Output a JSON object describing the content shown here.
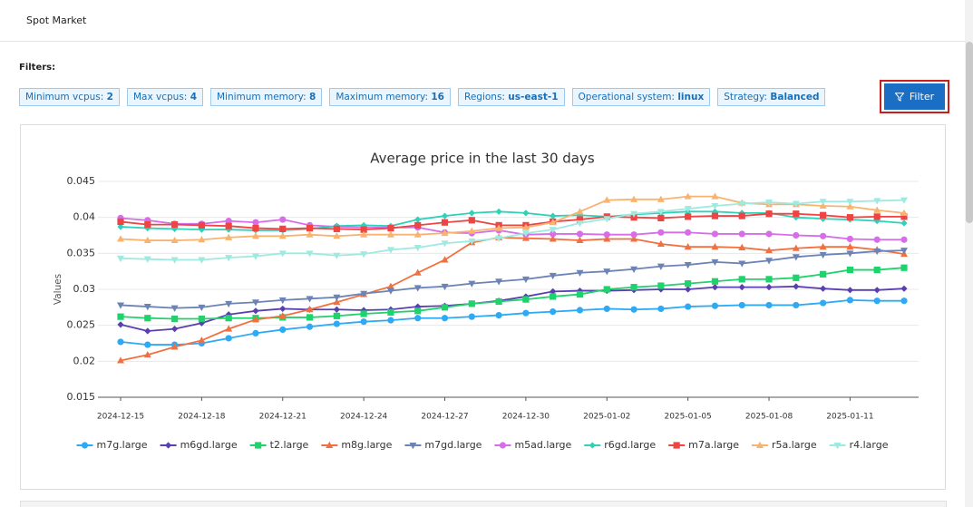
{
  "header": {
    "title": "Spot Market"
  },
  "filters": {
    "label": "Filters:",
    "button": "Filter",
    "chips": [
      {
        "label": "Minimum vcpus:",
        "value": "2"
      },
      {
        "label": "Max vcpus:",
        "value": "4"
      },
      {
        "label": "Minimum memory:",
        "value": "8"
      },
      {
        "label": "Maximum memory:",
        "value": "16"
      },
      {
        "label": "Regions:",
        "value": "us-east-1"
      },
      {
        "label": "Operational system:",
        "value": "linux"
      },
      {
        "label": "Strategy:",
        "value": "Balanced"
      }
    ]
  },
  "chart_data": {
    "type": "line",
    "title": "Average price in the last 30 days",
    "y_label": "Values",
    "x": [
      "2024-12-15",
      "2024-12-16",
      "2024-12-17",
      "2024-12-18",
      "2024-12-19",
      "2024-12-20",
      "2024-12-21",
      "2024-12-22",
      "2024-12-23",
      "2024-12-24",
      "2024-12-25",
      "2024-12-26",
      "2024-12-27",
      "2024-12-28",
      "2024-12-29",
      "2024-12-30",
      "2024-12-31",
      "2025-01-01",
      "2025-01-02",
      "2025-01-03",
      "2025-01-04",
      "2025-01-05",
      "2025-01-06",
      "2025-01-07",
      "2025-01-08",
      "2025-01-09",
      "2025-01-10",
      "2025-01-11",
      "2025-01-12",
      "2025-01-13"
    ],
    "xticks": [
      "2024-12-15",
      "2024-12-18",
      "2024-12-21",
      "2024-12-24",
      "2024-12-27",
      "2024-12-30",
      "2025-01-02",
      "2025-01-05",
      "2025-01-08",
      "2025-01-11"
    ],
    "ylim": [
      0.015,
      0.045
    ],
    "yticks": [
      0.015,
      0.02,
      0.025,
      0.03,
      0.035,
      0.04,
      0.045
    ],
    "grid": true,
    "legend": "bottom",
    "series": [
      {
        "name": "m7g.large",
        "color": "#2eaaf5",
        "marker": "circle",
        "values": [
          0.0227,
          0.0223,
          0.0223,
          0.0225,
          0.0232,
          0.0239,
          0.0244,
          0.0248,
          0.0252,
          0.0255,
          0.0257,
          0.026,
          0.026,
          0.0262,
          0.0264,
          0.0267,
          0.0269,
          0.0271,
          0.0273,
          0.0272,
          0.0273,
          0.0276,
          0.0277,
          0.0278,
          0.0278,
          0.0278,
          0.0281,
          0.0285,
          0.0284,
          0.0284
        ]
      },
      {
        "name": "m6gd.large",
        "color": "#5a3fb3",
        "marker": "diamond",
        "values": [
          0.0251,
          0.0242,
          0.0245,
          0.0253,
          0.0265,
          0.027,
          0.0273,
          0.0272,
          0.0272,
          0.0271,
          0.0272,
          0.0276,
          0.0277,
          0.028,
          0.0284,
          0.029,
          0.0297,
          0.0298,
          0.0298,
          0.0299,
          0.03,
          0.03,
          0.0303,
          0.0303,
          0.0303,
          0.0304,
          0.0301,
          0.0299,
          0.0299,
          0.0301
        ]
      },
      {
        "name": "t2.large",
        "color": "#1ed36b",
        "marker": "square",
        "values": [
          0.0262,
          0.026,
          0.0259,
          0.0259,
          0.026,
          0.026,
          0.0261,
          0.0261,
          0.0263,
          0.0266,
          0.0268,
          0.027,
          0.0275,
          0.028,
          0.0283,
          0.0286,
          0.029,
          0.0293,
          0.03,
          0.0303,
          0.0305,
          0.0308,
          0.0311,
          0.0314,
          0.0314,
          0.0316,
          0.0321,
          0.0327,
          0.0327,
          0.033
        ]
      },
      {
        "name": "m8g.large",
        "color": "#f07040",
        "marker": "triangle",
        "values": [
          0.0201,
          0.0209,
          0.022,
          0.0229,
          0.0245,
          0.0258,
          0.0263,
          0.0272,
          0.0282,
          0.0293,
          0.0304,
          0.0323,
          0.0341,
          0.0365,
          0.0372,
          0.0371,
          0.037,
          0.0368,
          0.037,
          0.037,
          0.0363,
          0.0359,
          0.0359,
          0.0358,
          0.0354,
          0.0357,
          0.0359,
          0.0359,
          0.0355,
          0.0349
        ]
      },
      {
        "name": "m7gd.large",
        "color": "#6b83b5",
        "marker": "triangle-down",
        "values": [
          0.0278,
          0.0276,
          0.0274,
          0.0275,
          0.028,
          0.0282,
          0.0285,
          0.0287,
          0.0289,
          0.0294,
          0.0298,
          0.0302,
          0.0304,
          0.0308,
          0.0311,
          0.0314,
          0.0319,
          0.0323,
          0.0325,
          0.0328,
          0.0332,
          0.0334,
          0.0338,
          0.0336,
          0.034,
          0.0345,
          0.0348,
          0.035,
          0.0353,
          0.0354
        ]
      },
      {
        "name": "m5ad.large",
        "color": "#d66ee8",
        "marker": "circle",
        "values": [
          0.0399,
          0.0396,
          0.0391,
          0.0391,
          0.0395,
          0.0393,
          0.0397,
          0.0389,
          0.0387,
          0.0386,
          0.0386,
          0.0386,
          0.0379,
          0.0378,
          0.0382,
          0.0376,
          0.0377,
          0.0377,
          0.0376,
          0.0376,
          0.0379,
          0.0379,
          0.0377,
          0.0377,
          0.0377,
          0.0375,
          0.0374,
          0.037,
          0.0369,
          0.0369
        ]
      },
      {
        "name": "r6gd.large",
        "color": "#30d1b9",
        "marker": "diamond",
        "values": [
          0.0387,
          0.0385,
          0.0384,
          0.0383,
          0.0383,
          0.0382,
          0.0382,
          0.0384,
          0.0388,
          0.0389,
          0.0388,
          0.0397,
          0.0402,
          0.0406,
          0.0408,
          0.0406,
          0.0402,
          0.0403,
          0.0401,
          0.0404,
          0.0406,
          0.0408,
          0.0408,
          0.0406,
          0.0406,
          0.04,
          0.0398,
          0.0397,
          0.0395,
          0.0392
        ]
      },
      {
        "name": "m7a.large",
        "color": "#ee4444",
        "marker": "square",
        "values": [
          0.0394,
          0.039,
          0.039,
          0.0389,
          0.0388,
          0.0385,
          0.0384,
          0.0385,
          0.0384,
          0.0383,
          0.0385,
          0.0389,
          0.0393,
          0.0396,
          0.0389,
          0.0389,
          0.0394,
          0.0397,
          0.0401,
          0.04,
          0.0399,
          0.0401,
          0.0402,
          0.0402,
          0.0405,
          0.0405,
          0.0403,
          0.04,
          0.0401,
          0.0401
        ]
      },
      {
        "name": "r5a.large",
        "color": "#f8b36f",
        "marker": "triangle",
        "values": [
          0.037,
          0.0368,
          0.0368,
          0.0369,
          0.0372,
          0.0374,
          0.0374,
          0.0376,
          0.0374,
          0.0376,
          0.0376,
          0.0376,
          0.0378,
          0.0381,
          0.0385,
          0.0386,
          0.0393,
          0.0408,
          0.0424,
          0.0425,
          0.0425,
          0.0429,
          0.0429,
          0.042,
          0.0418,
          0.0418,
          0.0416,
          0.0415,
          0.041,
          0.0406
        ]
      },
      {
        "name": "r4.large",
        "color": "#9ee9e0",
        "marker": "triangle-down",
        "values": [
          0.0343,
          0.0342,
          0.0341,
          0.0341,
          0.0344,
          0.0346,
          0.035,
          0.035,
          0.0347,
          0.0349,
          0.0355,
          0.0358,
          0.0364,
          0.0367,
          0.0371,
          0.0378,
          0.0383,
          0.0392,
          0.0398,
          0.0405,
          0.0408,
          0.0412,
          0.0416,
          0.0419,
          0.0421,
          0.0419,
          0.0422,
          0.0422,
          0.0423,
          0.0424
        ]
      }
    ]
  }
}
